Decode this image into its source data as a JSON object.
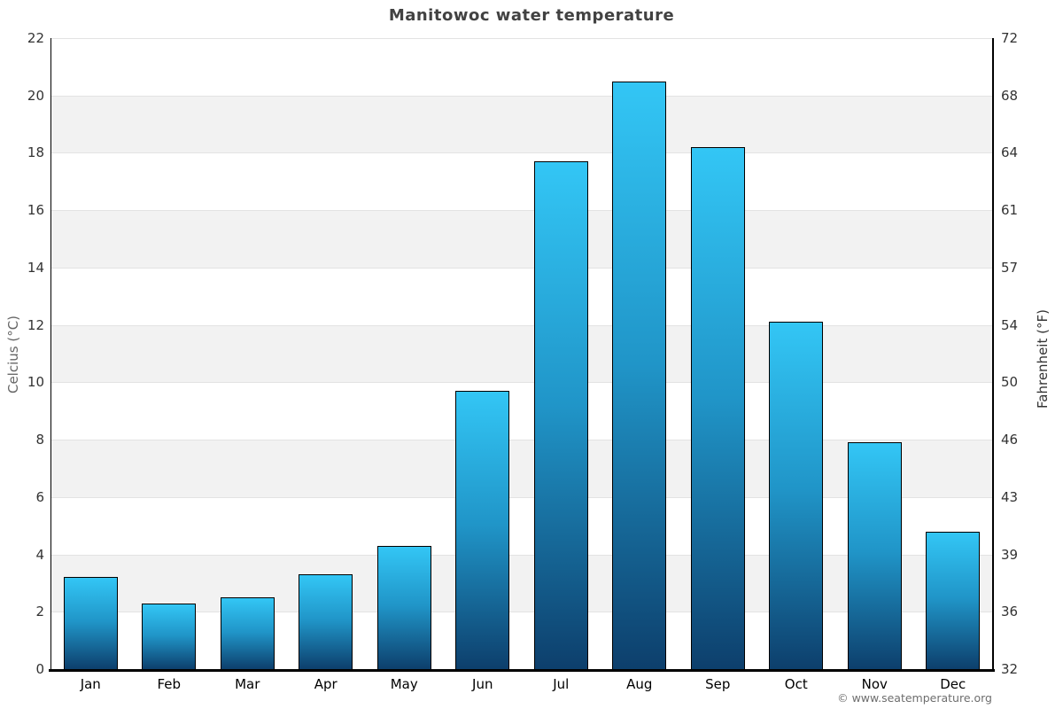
{
  "title": "Manitowoc water temperature",
  "footer": "© www.seatemperature.org",
  "chart_data": {
    "type": "bar",
    "title": "Manitowoc water temperature",
    "categories": [
      "Jan",
      "Feb",
      "Mar",
      "Apr",
      "May",
      "Jun",
      "Jul",
      "Aug",
      "Sep",
      "Oct",
      "Nov",
      "Dec"
    ],
    "values": [
      3.2,
      2.3,
      2.5,
      3.3,
      4.3,
      9.7,
      17.7,
      20.5,
      18.2,
      12.1,
      7.9,
      4.8
    ],
    "values_unit": "°C",
    "ylabel_left": "Celcius (°C)",
    "ylabel_right": "Fahrenheit (°F)",
    "ylim": [
      0,
      22
    ],
    "ytick_step": 2,
    "yticks": [
      {
        "c": "0",
        "f": "32"
      },
      {
        "c": "2",
        "f": "36"
      },
      {
        "c": "4",
        "f": "39"
      },
      {
        "c": "6",
        "f": "43"
      },
      {
        "c": "8",
        "f": "46"
      },
      {
        "c": "10",
        "f": "50"
      },
      {
        "c": "12",
        "f": "54"
      },
      {
        "c": "14",
        "f": "57"
      },
      {
        "c": "16",
        "f": "61"
      },
      {
        "c": "18",
        "f": "64"
      },
      {
        "c": "20",
        "f": "68"
      },
      {
        "c": "22",
        "f": "72"
      }
    ],
    "grid": "horizontal gridlines with alternating shaded bands every 2°C",
    "legend": null,
    "colors": {
      "bar_gradient_top": "#33c6f5",
      "bar_gradient_mid": "#2095c8",
      "bar_gradient_bottom": "#0d3f6c",
      "bar_border": "#000000",
      "band_shade": "#f2f2f2",
      "gridline": "#e3e3e3",
      "axis": "#000000"
    }
  }
}
